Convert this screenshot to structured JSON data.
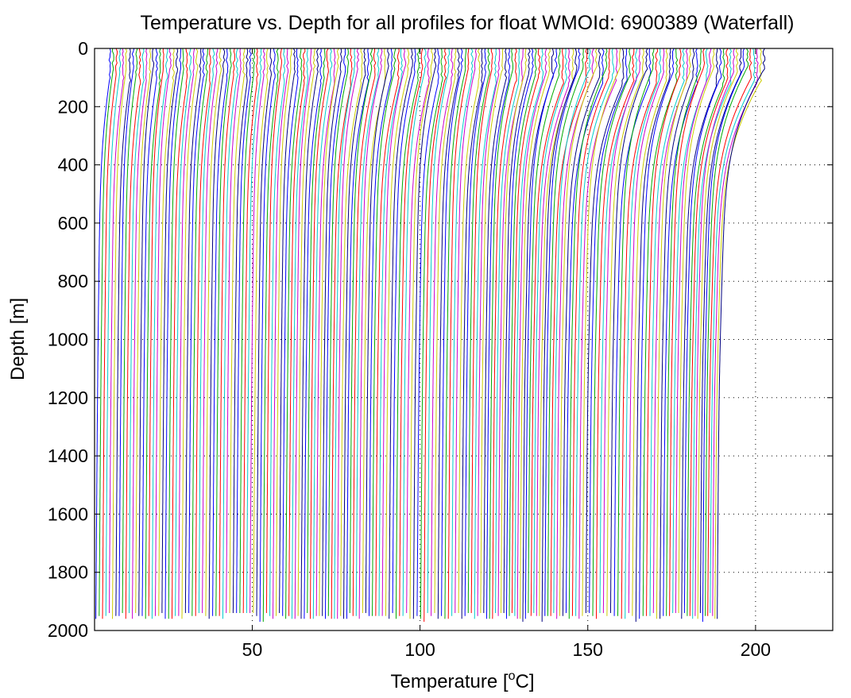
{
  "chart_data": {
    "type": "line",
    "title": "Temperature vs. Depth for all profiles for float WMOId: 6900389 (Waterfall)",
    "xlabel_prefix": "Temperature [",
    "xlabel_sup": "o",
    "xlabel_suffix": "C]",
    "ylabel": "Depth [m]",
    "xlim": [
      3,
      223
    ],
    "ylim": [
      0,
      2000
    ],
    "y_reversed": true,
    "grid": "dotted",
    "xticks": [
      50,
      100,
      150,
      200
    ],
    "yticks": [
      0,
      200,
      400,
      600,
      800,
      1000,
      1200,
      1400,
      1600,
      1800,
      2000
    ],
    "waterfall": {
      "profile_count": 196,
      "offset_per_profile_degC": 1.0,
      "first_surface_temp_degC": 7.5,
      "deep_temp_degC": 3.4,
      "max_depth_m": 1970,
      "mixed_layer_depth_m": 90
    },
    "series_colors": [
      "#0000ff",
      "#00aa00",
      "#ff0000",
      "#00cccc",
      "#cc00cc",
      "#cccc00",
      "#000080"
    ]
  }
}
